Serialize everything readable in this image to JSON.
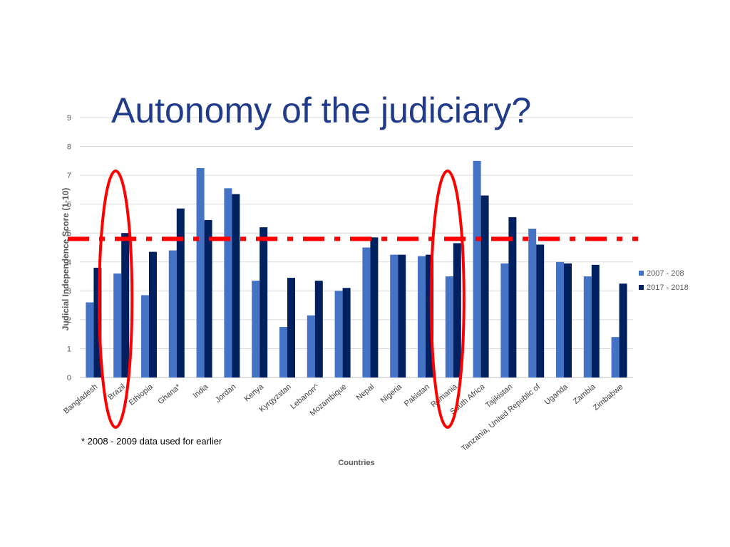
{
  "slide": {
    "title": "Autonomy of the judiciary?",
    "footnote": "* 2008 - 2009 data used for earlier"
  },
  "chart_data": {
    "type": "bar",
    "xlabel": "Countries",
    "ylabel": "Judicial Independence Score (1-10)",
    "ylim": [
      0,
      9
    ],
    "yticks": [
      0,
      1,
      2,
      3,
      4,
      5,
      6,
      7,
      8,
      9
    ],
    "grid": true,
    "legend_position": "right",
    "categories": [
      "Bangladesh",
      "Brazil",
      "Ethiopia",
      "Ghana*",
      "India",
      "Jordan",
      "Kenya",
      "Kyrgyzstan",
      "Lebanon^",
      "Mozambique",
      "Nepal",
      "Nigeria",
      "Pakistan",
      "Romania",
      "South Africa",
      "Tajikistan",
      "Tanzania, United Republic of",
      "Uganda",
      "Zambia",
      "Zimbabwe"
    ],
    "series": [
      {
        "name": "2007 - 208",
        "color": "#4472c4",
        "values": [
          2.6,
          3.6,
          2.85,
          4.4,
          7.25,
          6.55,
          3.35,
          1.75,
          2.15,
          3.0,
          4.5,
          4.25,
          4.2,
          3.5,
          7.5,
          3.95,
          5.15,
          4.0,
          3.5,
          1.4
        ]
      },
      {
        "name": "2017 - 2018",
        "color": "#002060",
        "values": [
          3.8,
          5.0,
          4.35,
          5.85,
          5.45,
          6.35,
          5.2,
          3.45,
          3.35,
          3.1,
          4.85,
          4.25,
          4.25,
          4.65,
          6.3,
          5.55,
          4.6,
          3.95,
          3.9,
          3.25
        ]
      }
    ],
    "annotations": {
      "reference_line_value": 4.8,
      "reference_line_color": "#ff0000",
      "highlight_circles": [
        "Brazil",
        "Romania"
      ],
      "highlight_color": "#ff0000"
    }
  }
}
